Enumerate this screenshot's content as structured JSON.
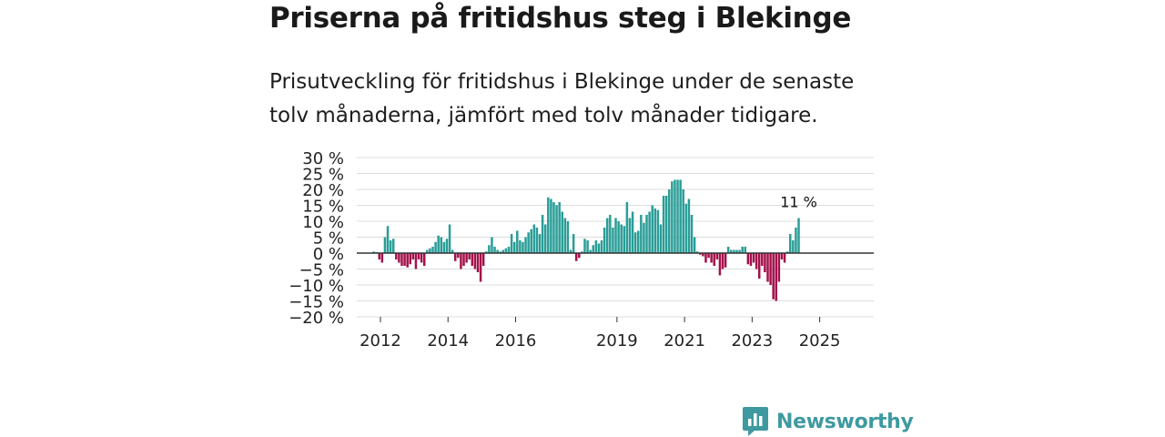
{
  "header": {
    "title": "Priserna på fritidshus steg i Blekinge",
    "subtitle": "Prisutveckling för fritidshus i Blekinge under de senaste tolv månaderna, jämfört med tolv månader tidigare."
  },
  "brand": {
    "name": "Newsworthy"
  },
  "colors": {
    "positive": "#2a9d97",
    "negative": "#a3104a",
    "grid": "#dcdcdc",
    "zero": "#333333",
    "brand": "#3e9aa0"
  },
  "chart_data": {
    "type": "bar",
    "title": "Priserna på fritidshus steg i Blekinge",
    "xlabel": "",
    "ylabel": "",
    "ylim": [
      -20,
      30
    ],
    "ytick_values": [
      30,
      25,
      20,
      15,
      10,
      5,
      0,
      -5,
      -10,
      -15,
      -20
    ],
    "ytick_labels": [
      "30 %",
      "25 %",
      "20 %",
      "15 %",
      "10 %",
      "5 %",
      "0 %",
      "−5 %",
      "−10 %",
      "−15 %",
      "−20 %"
    ],
    "xtick_labels": [
      "2012",
      "2014",
      "2016",
      "2019",
      "2021",
      "2023",
      "2025"
    ],
    "xtick_positions": [
      2012.0,
      2014.0,
      2016.0,
      2019.0,
      2021.0,
      2023.0,
      2025.0
    ],
    "x_range": [
      2011.3,
      2026.6
    ],
    "start_year": 2011.8,
    "step_years": 0.0833,
    "unit": "%",
    "annotation": {
      "label": "11 %",
      "value": 11
    },
    "values": [
      0.5,
      0.3,
      -2.0,
      -3.0,
      5.0,
      8.5,
      4.0,
      4.5,
      -2.0,
      -3.0,
      -4.0,
      -4.0,
      -4.5,
      -3.5,
      -2.0,
      -5.0,
      -2.0,
      -3.0,
      -4.0,
      1.0,
      1.5,
      2.0,
      3.5,
      5.5,
      5.0,
      3.5,
      4.5,
      9.0,
      1.0,
      -2.5,
      -1.5,
      -5.0,
      -4.0,
      -3.0,
      -2.0,
      -4.0,
      -5.0,
      -6.0,
      -9.0,
      -4.0,
      0.5,
      2.5,
      5.0,
      2.0,
      1.0,
      0.5,
      1.0,
      1.5,
      2.0,
      6.0,
      3.5,
      7.0,
      4.0,
      3.5,
      5.0,
      6.5,
      7.5,
      9.0,
      8.0,
      6.0,
      12.0,
      9.0,
      17.5,
      17.0,
      16.0,
      15.0,
      16.0,
      13.0,
      11.0,
      10.0,
      1.0,
      6.0,
      -2.5,
      -1.5,
      0.5,
      4.5,
      4.0,
      1.0,
      2.5,
      4.0,
      3.0,
      4.0,
      8.0,
      11.0,
      12.0,
      8.0,
      11.0,
      10.0,
      9.0,
      8.5,
      16.0,
      11.0,
      13.0,
      6.5,
      7.0,
      12.0,
      9.5,
      12.0,
      13.0,
      15.0,
      14.0,
      13.5,
      9.0,
      18.0,
      18.0,
      20.0,
      22.5,
      23.0,
      23.0,
      23.0,
      20.0,
      15.5,
      17.0,
      12.0,
      5.0,
      0.5,
      -0.5,
      -1.0,
      -3.0,
      -1.5,
      -3.0,
      -4.0,
      -2.0,
      -7.0,
      -5.0,
      -4.5,
      2.0,
      1.0,
      1.0,
      1.0,
      1.0,
      2.0,
      2.0,
      -3.5,
      -4.0,
      -3.0,
      -5.0,
      -8.0,
      -4.0,
      -6.0,
      -9.0,
      -10.0,
      -14.5,
      -15.0,
      -9.0,
      -2.0,
      -3.0,
      0.5,
      6.0,
      4.0,
      8.0,
      11.0
    ]
  }
}
